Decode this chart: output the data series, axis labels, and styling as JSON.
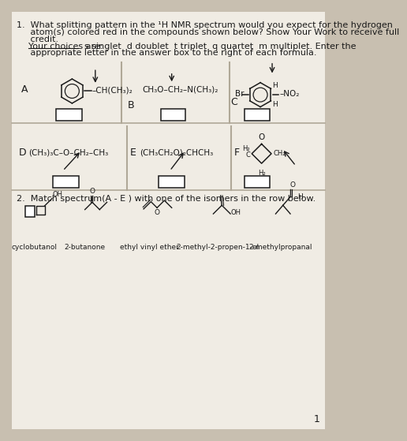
{
  "bg_outer": "#c8bfb0",
  "bg_page": "#f0ece4",
  "text_color": "#1a1a1a",
  "box_color": "#ffffff",
  "line_color": "#1a1a1a",
  "divider_color": "#b0a898",
  "page_number": "1",
  "q1_lines": [
    "1.  What splitting pattern in the ¹H NMR spectrum would you expect for the hydrogen",
    "     atom(s) colored red in the compounds shown below? Show Your Work to receive full",
    "     credit.",
    "     appropriate letter in the answer box to the right of each formula."
  ],
  "choices_underlined": "Your choices are:",
  "choices_rest": "  s singlet  d doublet  t triplet  q quartet  m multiplet. Enter the",
  "q2_text": "2.  Match spectrum(A - E ) with one of the isomers in the row below.",
  "isomers": [
    "cyclobutanol",
    "2-butanone",
    "ethyl vinyl ether",
    "2-methyl-2-propen-1-ol",
    "2-methylpropanal"
  ]
}
